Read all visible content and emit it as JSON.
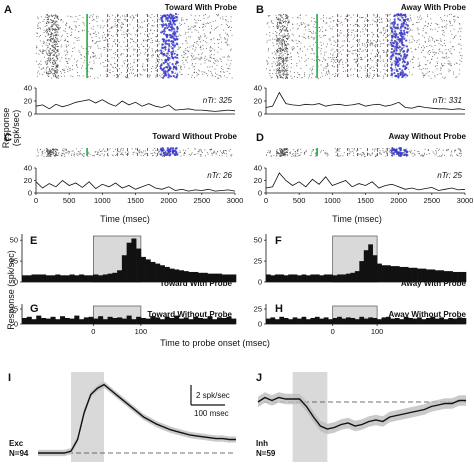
{
  "figure": {
    "colors": {
      "trace": "#111111",
      "raster": "#333333",
      "green": "#22aa44",
      "red": "#cc2222",
      "blue": "#3b3bcc",
      "shade": "#d9d9d9",
      "box": "#555555"
    },
    "raster_panels": [
      {
        "id": "A",
        "title": "Toward With Probe",
        "ntr": "nTr: 325",
        "yticks": [
          "0",
          "20",
          "40"
        ],
        "xticks": [],
        "big": true
      },
      {
        "id": "B",
        "title": "Away With Probe",
        "ntr": "nTr: 331",
        "yticks": [
          "0",
          "20",
          "40"
        ],
        "xticks": [],
        "big": true
      },
      {
        "id": "C",
        "title": "Toward Without Probe",
        "ntr": "nTr: 26",
        "yticks": [
          "0",
          "20",
          "40"
        ],
        "xticks": [
          "0",
          "500",
          "1000",
          "1500",
          "2000",
          "2500",
          "3000"
        ],
        "big": false
      },
      {
        "id": "D",
        "title": "Away Without Probe",
        "ntr": "nTr: 25",
        "yticks": [
          "0",
          "20",
          "40"
        ],
        "xticks": [
          "0",
          "500",
          "1000",
          "1500",
          "2000",
          "2500",
          "3000"
        ],
        "big": false
      }
    ],
    "response_label_top": "Response\n(spk/sec)",
    "time_label": "Time (msec)",
    "hist_panels": [
      {
        "id": "E",
        "title": "Toward With Probe",
        "yticks": [
          "0",
          "25",
          "50"
        ],
        "xticks": []
      },
      {
        "id": "F",
        "title": "Away With Probe",
        "yticks": [
          "0",
          "25",
          "50"
        ],
        "xticks": []
      },
      {
        "id": "G",
        "title": "Toward Without Probe",
        "yticks": [
          "0",
          "25"
        ],
        "xticks": [
          "0",
          "100"
        ]
      },
      {
        "id": "H",
        "title": "Away Without Probe",
        "yticks": [
          "0",
          "25"
        ],
        "xticks": [
          "0",
          "100"
        ]
      }
    ],
    "response_label_mid": "Response (spk/sec)",
    "probe_onset_label": "Time to probe onset (msec)",
    "pop_panels": [
      {
        "id": "I",
        "name": "Exc",
        "n": "N=94"
      },
      {
        "id": "J",
        "name": "Inh",
        "n": "N=59"
      }
    ],
    "scalebar": {
      "y": "2 spk/sec",
      "x": "100 msec"
    }
  },
  "chart_data": [
    {
      "type": "line",
      "panel": "A",
      "title": "Toward With Probe",
      "xlim": [
        0,
        3000
      ],
      "ylim": [
        0,
        40
      ],
      "x": [
        0,
        100,
        200,
        300,
        400,
        500,
        600,
        700,
        800,
        900,
        1000,
        1100,
        1200,
        1300,
        1400,
        1500,
        1600,
        1700,
        1800,
        1900,
        2000,
        2100,
        2200,
        2300,
        2400,
        2500,
        2600,
        2700,
        2800,
        2900,
        3000
      ],
      "values": [
        12,
        14,
        8,
        15,
        11,
        14,
        18,
        20,
        22,
        17,
        22,
        16,
        12,
        20,
        14,
        18,
        12,
        16,
        12,
        10,
        14,
        6,
        7,
        8,
        6,
        6,
        5,
        4,
        5,
        6,
        5
      ]
    },
    {
      "type": "line",
      "panel": "B",
      "title": "Away With Probe",
      "xlim": [
        0,
        3000
      ],
      "ylim": [
        0,
        40
      ],
      "x": [
        0,
        100,
        200,
        300,
        400,
        500,
        600,
        700,
        800,
        900,
        1000,
        1100,
        1200,
        1300,
        1400,
        1500,
        1600,
        1700,
        1800,
        1900,
        2000,
        2100,
        2200,
        2300,
        2400,
        2500,
        2600,
        2700,
        2800,
        2900,
        3000
      ],
      "values": [
        10,
        12,
        33,
        16,
        14,
        13,
        15,
        14,
        16,
        12,
        14,
        15,
        13,
        14,
        16,
        12,
        14,
        15,
        12,
        14,
        18,
        10,
        9,
        12,
        10,
        9,
        8,
        8,
        7,
        8,
        7
      ]
    },
    {
      "type": "line",
      "panel": "C",
      "title": "Toward Without Probe",
      "xlim": [
        0,
        3000
      ],
      "ylim": [
        0,
        40
      ],
      "x": [
        0,
        100,
        200,
        300,
        400,
        500,
        600,
        700,
        800,
        900,
        1000,
        1100,
        1200,
        1300,
        1400,
        1500,
        1600,
        1700,
        1800,
        1900,
        2000,
        2100,
        2200,
        2300,
        2400,
        2500,
        2600,
        2700,
        2800,
        2900,
        3000
      ],
      "values": [
        18,
        8,
        15,
        10,
        20,
        12,
        16,
        9,
        18,
        7,
        14,
        10,
        16,
        8,
        12,
        6,
        10,
        14,
        8,
        6,
        10,
        4,
        6,
        3,
        5,
        4,
        6,
        3,
        4,
        5,
        3
      ]
    },
    {
      "type": "line",
      "panel": "D",
      "title": "Away Without Probe",
      "xlim": [
        0,
        3000
      ],
      "ylim": [
        0,
        40
      ],
      "x": [
        0,
        100,
        200,
        300,
        400,
        500,
        600,
        700,
        800,
        900,
        1000,
        1100,
        1200,
        1300,
        1400,
        1500,
        1600,
        1700,
        1800,
        1900,
        2000,
        2100,
        2200,
        2300,
        2400,
        2500,
        2600,
        2700,
        2800,
        2900,
        3000
      ],
      "values": [
        8,
        10,
        32,
        20,
        12,
        18,
        10,
        22,
        14,
        26,
        12,
        16,
        20,
        10,
        15,
        12,
        18,
        8,
        12,
        14,
        10,
        6,
        8,
        5,
        7,
        9,
        4,
        6,
        8,
        5,
        6
      ]
    },
    {
      "type": "bar",
      "panel": "E",
      "title": "Toward With Probe",
      "ylim": [
        0,
        55
      ],
      "probe_window": [
        0,
        100
      ],
      "bins": [
        -150,
        -140,
        -130,
        -120,
        -110,
        -100,
        -90,
        -80,
        -70,
        -60,
        -50,
        -40,
        -30,
        -20,
        -10,
        0,
        10,
        20,
        30,
        40,
        50,
        60,
        70,
        80,
        90,
        100,
        110,
        120,
        130,
        140,
        150,
        160,
        170,
        180,
        190,
        200,
        210,
        220,
        230,
        240,
        250,
        260,
        270,
        280,
        290
      ],
      "values": [
        8,
        8,
        9,
        9,
        9,
        8,
        8,
        9,
        8,
        8,
        9,
        8,
        9,
        8,
        8,
        9,
        8,
        9,
        10,
        11,
        14,
        32,
        47,
        52,
        40,
        30,
        27,
        24,
        22,
        20,
        18,
        16,
        15,
        14,
        13,
        12,
        12,
        11,
        11,
        10,
        10,
        10,
        9,
        9,
        9
      ]
    },
    {
      "type": "bar",
      "panel": "F",
      "title": "Away With Probe",
      "ylim": [
        0,
        55
      ],
      "probe_window": [
        0,
        100
      ],
      "bins": [
        -150,
        -140,
        -130,
        -120,
        -110,
        -100,
        -90,
        -80,
        -70,
        -60,
        -50,
        -40,
        -30,
        -20,
        -10,
        0,
        10,
        20,
        30,
        40,
        50,
        60,
        70,
        80,
        90,
        100,
        110,
        120,
        130,
        140,
        150,
        160,
        170,
        180,
        190,
        200,
        210,
        220,
        230,
        240,
        250,
        260,
        270,
        280,
        290
      ],
      "values": [
        9,
        8,
        9,
        9,
        8,
        9,
        9,
        8,
        9,
        8,
        9,
        9,
        8,
        9,
        9,
        8,
        9,
        9,
        10,
        11,
        13,
        25,
        38,
        45,
        32,
        22,
        20,
        20,
        19,
        19,
        18,
        18,
        17,
        17,
        16,
        16,
        15,
        15,
        14,
        14,
        13,
        13,
        12,
        12,
        12
      ]
    },
    {
      "type": "bar",
      "panel": "G",
      "title": "Toward Without Probe",
      "ylim": [
        0,
        30
      ],
      "probe_window": [
        0,
        100
      ],
      "bins": [
        -150,
        -140,
        -130,
        -120,
        -110,
        -100,
        -90,
        -80,
        -70,
        -60,
        -50,
        -40,
        -30,
        -20,
        -10,
        0,
        10,
        20,
        30,
        40,
        50,
        60,
        70,
        80,
        90,
        100,
        110,
        120,
        130,
        140,
        150,
        160,
        170,
        180,
        190,
        200,
        210,
        220,
        230,
        240,
        250,
        260,
        270,
        280,
        290
      ],
      "values": [
        10,
        12,
        8,
        14,
        10,
        9,
        12,
        8,
        13,
        10,
        9,
        14,
        8,
        11,
        12,
        9,
        13,
        8,
        12,
        10,
        11,
        9,
        14,
        8,
        12,
        10,
        9,
        13,
        11,
        8,
        12,
        10,
        14,
        9,
        11,
        8,
        12,
        10,
        9,
        13,
        8,
        11,
        10,
        12,
        9
      ]
    },
    {
      "type": "bar",
      "panel": "H",
      "title": "Away Without Probe",
      "ylim": [
        0,
        30
      ],
      "probe_window": [
        0,
        100
      ],
      "bins": [
        -150,
        -140,
        -130,
        -120,
        -110,
        -100,
        -90,
        -80,
        -70,
        -60,
        -50,
        -40,
        -30,
        -20,
        -10,
        0,
        10,
        20,
        30,
        40,
        50,
        60,
        70,
        80,
        90,
        100,
        110,
        120,
        130,
        140,
        150,
        160,
        170,
        180,
        190,
        200,
        210,
        220,
        230,
        240,
        250,
        260,
        270,
        280,
        290
      ],
      "values": [
        9,
        11,
        8,
        12,
        10,
        8,
        11,
        9,
        12,
        8,
        10,
        12,
        9,
        11,
        8,
        10,
        12,
        9,
        11,
        10,
        8,
        12,
        9,
        11,
        10,
        8,
        11,
        12,
        9,
        10,
        8,
        12,
        10,
        9,
        11,
        8,
        10,
        12,
        9,
        11,
        8,
        10,
        9,
        11,
        10
      ]
    },
    {
      "type": "line",
      "panel": "I",
      "name": "Exc",
      "n": "N=94",
      "probe_window": [
        0,
        100
      ],
      "xlim": [
        -100,
        500
      ],
      "ylim": [
        -1,
        9
      ],
      "baseline": 0,
      "x": [
        -100,
        -80,
        -60,
        -40,
        -20,
        0,
        20,
        40,
        60,
        80,
        100,
        120,
        140,
        160,
        180,
        200,
        220,
        240,
        260,
        280,
        300,
        320,
        340,
        360,
        380,
        400,
        420,
        440,
        460,
        480,
        500
      ],
      "values": [
        0,
        0,
        0,
        0,
        0,
        0.2,
        1.5,
        4.5,
        6.5,
        7.2,
        7.6,
        7.0,
        6.4,
        5.8,
        5.2,
        4.6,
        4.0,
        3.6,
        3.2,
        2.9,
        2.6,
        2.4,
        2.2,
        2.0,
        1.9,
        1.8,
        1.7,
        1.6,
        1.6,
        1.5,
        1.5
      ]
    },
    {
      "type": "line",
      "panel": "J",
      "name": "Inh",
      "n": "N=59",
      "probe_window": [
        0,
        100
      ],
      "xlim": [
        -100,
        500
      ],
      "ylim": [
        -4,
        2
      ],
      "baseline": 0,
      "x": [
        -100,
        -80,
        -60,
        -40,
        -20,
        0,
        20,
        40,
        60,
        80,
        100,
        120,
        140,
        160,
        180,
        200,
        220,
        240,
        260,
        280,
        300,
        320,
        340,
        360,
        380,
        400,
        420,
        440,
        460,
        480,
        500
      ],
      "values": [
        0,
        0.3,
        0.1,
        0.3,
        0.2,
        0.2,
        0.2,
        -0.3,
        -1.0,
        -1.6,
        -1.8,
        -1.7,
        -1.5,
        -1.4,
        -1.6,
        -1.5,
        -1.3,
        -1.2,
        -1.3,
        -1.0,
        -0.9,
        -0.8,
        -0.7,
        -0.6,
        -0.5,
        -0.3,
        -0.2,
        -0.1,
        -0.1,
        0.1,
        0.1
      ]
    }
  ]
}
